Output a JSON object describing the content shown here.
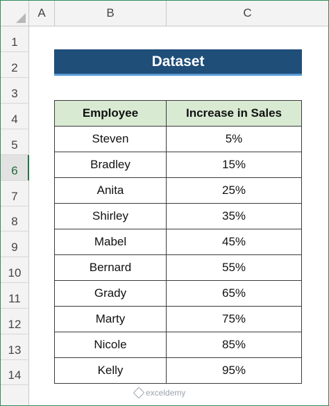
{
  "sheet": {
    "columns": [
      "A",
      "B",
      "C"
    ],
    "rows": [
      "1",
      "2",
      "3",
      "4",
      "5",
      "6",
      "7",
      "8",
      "9",
      "10",
      "11",
      "12",
      "13",
      "14"
    ],
    "active_row": "6"
  },
  "banner": {
    "title": "Dataset"
  },
  "table": {
    "headers": [
      "Employee",
      "Increase in Sales"
    ],
    "rows": [
      {
        "employee": "Steven",
        "increase": "5%"
      },
      {
        "employee": "Bradley",
        "increase": "15%"
      },
      {
        "employee": "Anita",
        "increase": "25%"
      },
      {
        "employee": "Shirley",
        "increase": "35%"
      },
      {
        "employee": "Mabel",
        "increase": "45%"
      },
      {
        "employee": "Bernard",
        "increase": "55%"
      },
      {
        "employee": "Grady",
        "increase": "65%"
      },
      {
        "employee": "Marty",
        "increase": "75%"
      },
      {
        "employee": "Nicole",
        "increase": "85%"
      },
      {
        "employee": "Kelly",
        "increase": "95%"
      }
    ]
  },
  "watermark": {
    "text": "exceldemy",
    "logo": "exceldemy-logo-icon"
  },
  "colors": {
    "banner_bg": "#1f4e79",
    "banner_underline": "#5b9bd5",
    "header_fill": "#d9ead3",
    "active_row_marker": "#217346"
  }
}
